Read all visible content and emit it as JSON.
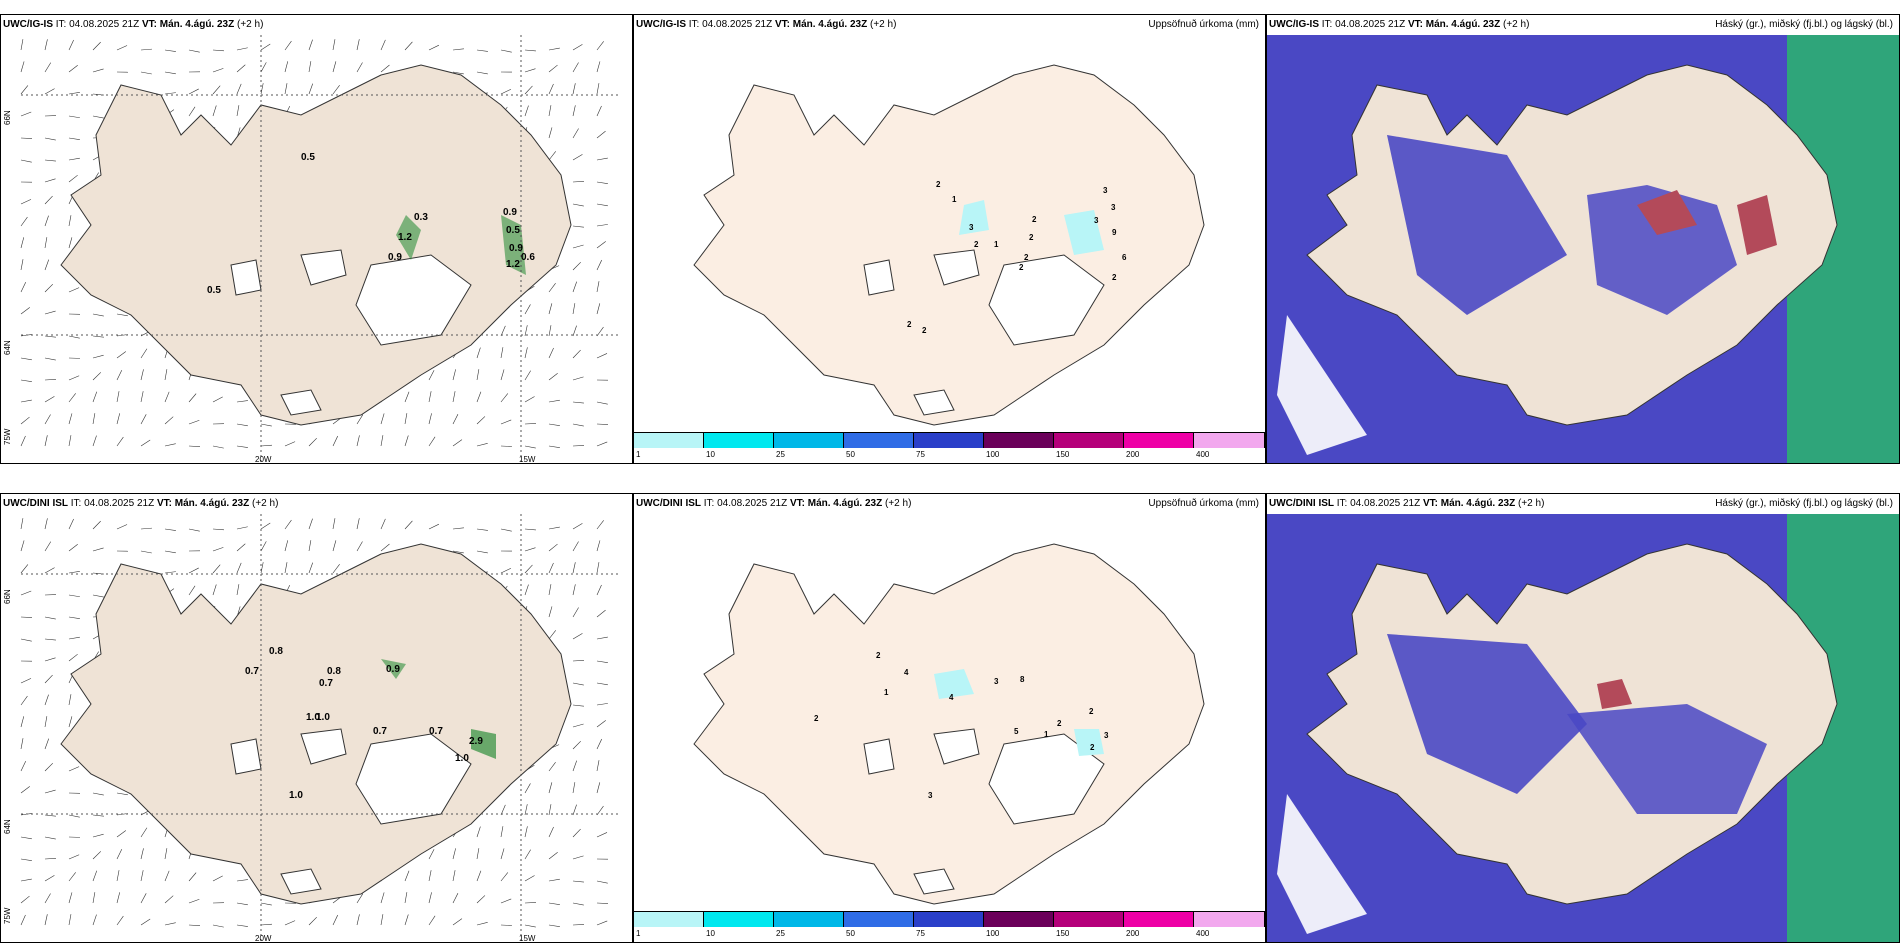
{
  "rows": [
    {
      "model": "UWC/IG-IS",
      "it_label": "IT:",
      "it_value": "04.08.2025 21Z",
      "vt_label": "VT:",
      "vt_value": "Mán. 4.ágú. 23Z",
      "lead": "(+2 h)",
      "wind_values": [
        "0.5",
        "0.3",
        "1.2",
        "0.9",
        "0.9",
        "0.5",
        "0.9",
        "1.2",
        "0.6",
        "0.5"
      ],
      "precip_values": [
        "2",
        "1",
        "3",
        "2",
        "1",
        "2",
        "2",
        "2",
        "2",
        "3",
        "3",
        "3",
        "9",
        "6",
        "2",
        "2",
        "2"
      ],
      "axis_bottom": [
        "20W",
        "15W"
      ],
      "axis_left": [
        "66N",
        "64N",
        "75W"
      ]
    },
    {
      "model": "UWC/DINI ISL",
      "it_label": "IT:",
      "it_value": "04.08.2025 21Z",
      "vt_label": "VT:",
      "vt_value": "Mán. 4.ágú. 23Z",
      "lead": "(+2 h)",
      "wind_values": [
        "0.8",
        "0.7",
        "0.8",
        "0.7",
        "0.9",
        "1.0",
        "0.7",
        "1.0",
        "1.0",
        "0.7",
        "2.9",
        "1.0"
      ],
      "precip_values": [
        "2",
        "4",
        "1",
        "2",
        "4",
        "3",
        "8",
        "5",
        "1",
        "2",
        "2",
        "3",
        "2",
        "3"
      ],
      "axis_bottom": [
        "20W",
        "15W"
      ],
      "axis_left": [
        "66N",
        "64N",
        "75W"
      ]
    }
  ],
  "precip_title": "Uppsöfnuð úrkoma (mm)",
  "cloud_title": "Háský (gr.), miðský (fj.bl.) og lágský (bl.)",
  "colorbar": {
    "ticks": [
      "1",
      "10",
      "25",
      "50",
      "75",
      "100",
      "150",
      "200",
      "400"
    ],
    "colors": [
      "#b8f5f7",
      "#00e8ef",
      "#00b8e8",
      "#2f6ce6",
      "#2a3fc9",
      "#6b005a",
      "#b5007a",
      "#ee00a6",
      "#f2a8ee"
    ]
  }
}
